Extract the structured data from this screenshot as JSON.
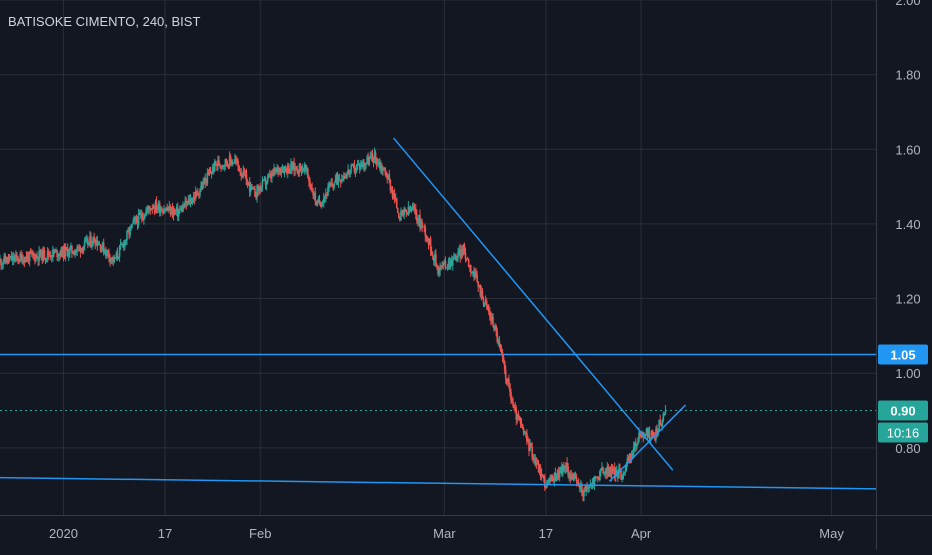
{
  "header": {
    "title": "BATISOKE CIMENTO, 240, BIST"
  },
  "chart_data": {
    "type": "candlestick",
    "symbol": "BATISOKE CIMENTO",
    "interval": "240",
    "exchange": "BIST",
    "ylim": [
      0.62,
      2.0
    ],
    "y_ticks": [
      2.0,
      1.8,
      1.6,
      1.4,
      1.2,
      1.0,
      0.8
    ],
    "y_tick_labels": [
      "2.00",
      "1.80",
      "1.60",
      "1.40",
      "1.20",
      "1.00",
      "0.80"
    ],
    "x_ticks": [
      {
        "label": "2020",
        "date": "2020-01-01"
      },
      {
        "label": "17",
        "date": "2020-01-17"
      },
      {
        "label": "Feb",
        "date": "2020-02-01"
      },
      {
        "label": "Mar",
        "date": "2020-03-01"
      },
      {
        "label": "17",
        "date": "2020-03-17"
      },
      {
        "label": "Apr",
        "date": "2020-04-01"
      },
      {
        "label": "May",
        "date": "2020-05-01"
      }
    ],
    "x_range": [
      "2019-12-22",
      "2020-05-08"
    ],
    "grid": true,
    "colors": {
      "background": "#131722",
      "grid": "#2a2e39",
      "up": "#26a69a",
      "down": "#ef5350",
      "drawing": "#2196f3",
      "axis_text": "#b2b5be",
      "price_line": "#26a69a"
    },
    "closes": [
      {
        "date": "2019-12-22",
        "close": 1.3
      },
      {
        "date": "2019-12-26",
        "close": 1.31
      },
      {
        "date": "2019-12-30",
        "close": 1.32
      },
      {
        "date": "2020-01-03",
        "close": 1.33
      },
      {
        "date": "2020-01-06",
        "close": 1.36
      },
      {
        "date": "2020-01-09",
        "close": 1.3
      },
      {
        "date": "2020-01-12",
        "close": 1.4
      },
      {
        "date": "2020-01-15",
        "close": 1.45
      },
      {
        "date": "2020-01-19",
        "close": 1.43
      },
      {
        "date": "2020-01-22",
        "close": 1.48
      },
      {
        "date": "2020-01-25",
        "close": 1.56
      },
      {
        "date": "2020-01-28",
        "close": 1.57
      },
      {
        "date": "2020-01-31",
        "close": 1.48
      },
      {
        "date": "2020-02-04",
        "close": 1.55
      },
      {
        "date": "2020-02-08",
        "close": 1.55
      },
      {
        "date": "2020-02-10",
        "close": 1.45
      },
      {
        "date": "2020-02-13",
        "close": 1.52
      },
      {
        "date": "2020-02-17",
        "close": 1.56
      },
      {
        "date": "2020-02-19",
        "close": 1.58
      },
      {
        "date": "2020-02-21",
        "close": 1.53
      },
      {
        "date": "2020-02-23",
        "close": 1.42
      },
      {
        "date": "2020-02-25",
        "close": 1.44
      },
      {
        "date": "2020-02-27",
        "close": 1.38
      },
      {
        "date": "2020-02-29",
        "close": 1.28
      },
      {
        "date": "2020-03-02",
        "close": 1.3
      },
      {
        "date": "2020-03-04",
        "close": 1.33
      },
      {
        "date": "2020-03-06",
        "close": 1.25
      },
      {
        "date": "2020-03-09",
        "close": 1.12
      },
      {
        "date": "2020-03-12",
        "close": 0.9
      },
      {
        "date": "2020-03-15",
        "close": 0.78
      },
      {
        "date": "2020-03-17",
        "close": 0.7
      },
      {
        "date": "2020-03-20",
        "close": 0.75
      },
      {
        "date": "2020-03-23",
        "close": 0.68
      },
      {
        "date": "2020-03-26",
        "close": 0.74
      },
      {
        "date": "2020-03-29",
        "close": 0.73
      },
      {
        "date": "2020-04-01",
        "close": 0.84
      },
      {
        "date": "2020-04 -03",
        "close": 0.83
      },
      {
        "date": "2020-04-05",
        "close": 0.9
      }
    ],
    "horizontal_lines": [
      {
        "price": 1.05,
        "label": "1.05"
      }
    ],
    "last_price": {
      "value": 0.9,
      "label": "0.90",
      "countdown": "10:16"
    },
    "trendlines": [
      {
        "from": {
          "date": "2020-02-22",
          "price": 1.63
        },
        "to": {
          "date": "2020-04-06",
          "price": 0.74
        }
      },
      {
        "from": {
          "date": "2019-12-22",
          "price": 0.72
        },
        "to": {
          "date": "2020-05-08",
          "price": 0.69
        }
      },
      {
        "from": {
          "date": "2020-03-27",
          "price": 0.71
        },
        "to": {
          "date": "2020-04-08",
          "price": 0.915
        }
      }
    ]
  }
}
